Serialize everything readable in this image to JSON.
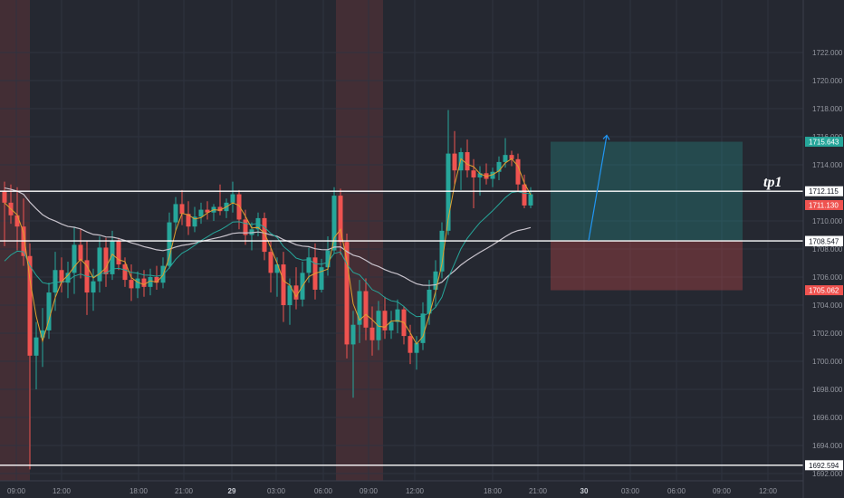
{
  "chart_data": {
    "type": "candlestick",
    "title": "",
    "xlabel": "",
    "ylabel": "",
    "ylim": [
      1692.0,
      1724.0
    ],
    "y_ticks": [
      "1722.000",
      "1720.000",
      "1718.000",
      "1716.000",
      "1714.000",
      "1712.000",
      "1710.000",
      "1708.000",
      "1706.000",
      "1704.000",
      "1702.000",
      "1700.000",
      "1698.000",
      "1696.000",
      "1694.000",
      "1692.000"
    ],
    "x_ticks": [
      {
        "label": "09:00",
        "bold": false
      },
      {
        "label": "12:00",
        "bold": false
      },
      {
        "label": "18:00",
        "bold": false
      },
      {
        "label": "21:00",
        "bold": false
      },
      {
        "label": "29",
        "bold": true
      },
      {
        "label": "03:00",
        "bold": false
      },
      {
        "label": "06:00",
        "bold": false
      },
      {
        "label": "09:00",
        "bold": false
      },
      {
        "label": "12:00",
        "bold": false
      },
      {
        "label": "18:00",
        "bold": false
      },
      {
        "label": "21:00",
        "bold": false
      },
      {
        "label": "30",
        "bold": true
      },
      {
        "label": "03:00",
        "bold": false
      },
      {
        "label": "06:00",
        "bold": false
      },
      {
        "label": "09:00",
        "bold": false
      },
      {
        "label": "12:00",
        "bold": false
      }
    ],
    "horizontal_lines": [
      1712.115,
      1708.578,
      1692.594
    ],
    "price_tags": [
      {
        "label": "1715.643",
        "value": 1715.643,
        "color": "#26a69a"
      },
      {
        "label": "1712.115",
        "value": 1712.115,
        "color": "#ffffff"
      },
      {
        "label": "1711.130",
        "value": 1711.13,
        "color": "#ef5350"
      },
      {
        "label": "1708.578",
        "value": 1708.578,
        "color": "#ffffff"
      },
      {
        "label": "1708.547",
        "value": 1708.547,
        "color": "#ffffff"
      },
      {
        "label": "1705.062",
        "value": 1705.062,
        "color": "#ef5350"
      },
      {
        "label": "1692.594",
        "value": 1692.594,
        "color": "#ffffff"
      }
    ],
    "position": {
      "entry": 1708.578,
      "target": 1715.643,
      "stop": 1705.062,
      "projection_start": 1708.6,
      "projection_end": 1716.1
    },
    "annotation": "tp1",
    "bull_color": "#26a69a",
    "bear_color": "#ef5350",
    "candles": [
      {
        "o": 1712.1,
        "h": 1712.8,
        "l": 1708.2,
        "c": 1711.3
      },
      {
        "o": 1711.3,
        "h": 1712.6,
        "l": 1709.8,
        "c": 1710.4
      },
      {
        "o": 1710.4,
        "h": 1712.4,
        "l": 1707.9,
        "c": 1709.6
      },
      {
        "o": 1709.6,
        "h": 1711.6,
        "l": 1706.8,
        "c": 1707.5
      },
      {
        "o": 1707.5,
        "h": 1708.4,
        "l": 1692.3,
        "c": 1700.4
      },
      {
        "o": 1700.4,
        "h": 1702.8,
        "l": 1698.0,
        "c": 1701.7
      },
      {
        "o": 1701.7,
        "h": 1703.8,
        "l": 1699.6,
        "c": 1702.2
      },
      {
        "o": 1702.2,
        "h": 1705.6,
        "l": 1701.6,
        "c": 1704.9
      },
      {
        "o": 1704.9,
        "h": 1707.8,
        "l": 1703.6,
        "c": 1706.5
      },
      {
        "o": 1706.5,
        "h": 1707.4,
        "l": 1704.9,
        "c": 1705.6
      },
      {
        "o": 1705.6,
        "h": 1707.1,
        "l": 1704.5,
        "c": 1706.3
      },
      {
        "o": 1706.3,
        "h": 1709.6,
        "l": 1704.8,
        "c": 1708.3
      },
      {
        "o": 1708.3,
        "h": 1709.4,
        "l": 1705.9,
        "c": 1707.2
      },
      {
        "o": 1707.2,
        "h": 1708.6,
        "l": 1703.3,
        "c": 1704.9
      },
      {
        "o": 1704.9,
        "h": 1706.6,
        "l": 1703.6,
        "c": 1705.7
      },
      {
        "o": 1705.7,
        "h": 1708.9,
        "l": 1704.9,
        "c": 1708.1
      },
      {
        "o": 1708.1,
        "h": 1708.8,
        "l": 1705.3,
        "c": 1706.2
      },
      {
        "o": 1706.2,
        "h": 1709.3,
        "l": 1705.8,
        "c": 1708.6
      },
      {
        "o": 1708.6,
        "h": 1708.8,
        "l": 1706.5,
        "c": 1706.9
      },
      {
        "o": 1706.9,
        "h": 1707.4,
        "l": 1705.3,
        "c": 1705.8
      },
      {
        "o": 1705.8,
        "h": 1706.9,
        "l": 1704.3,
        "c": 1705.2
      },
      {
        "o": 1705.2,
        "h": 1706.4,
        "l": 1704.5,
        "c": 1705.9
      },
      {
        "o": 1705.9,
        "h": 1706.5,
        "l": 1704.6,
        "c": 1705.3
      },
      {
        "o": 1705.3,
        "h": 1706.6,
        "l": 1704.7,
        "c": 1706.0
      },
      {
        "o": 1706.0,
        "h": 1706.8,
        "l": 1705.1,
        "c": 1705.6
      },
      {
        "o": 1705.6,
        "h": 1707.4,
        "l": 1705.2,
        "c": 1706.8
      },
      {
        "o": 1706.8,
        "h": 1710.6,
        "l": 1706.6,
        "c": 1709.9
      },
      {
        "o": 1709.9,
        "h": 1711.7,
        "l": 1709.3,
        "c": 1711.2
      },
      {
        "o": 1711.2,
        "h": 1712.2,
        "l": 1709.7,
        "c": 1710.5
      },
      {
        "o": 1710.5,
        "h": 1711.4,
        "l": 1709.0,
        "c": 1709.6
      },
      {
        "o": 1709.6,
        "h": 1711.0,
        "l": 1709.2,
        "c": 1710.3
      },
      {
        "o": 1710.3,
        "h": 1711.3,
        "l": 1709.8,
        "c": 1710.8
      },
      {
        "o": 1710.8,
        "h": 1711.4,
        "l": 1710.1,
        "c": 1710.6
      },
      {
        "o": 1710.6,
        "h": 1711.2,
        "l": 1710.0,
        "c": 1711.0
      },
      {
        "o": 1711.0,
        "h": 1712.6,
        "l": 1710.4,
        "c": 1710.7
      },
      {
        "o": 1710.7,
        "h": 1711.6,
        "l": 1710.2,
        "c": 1711.3
      },
      {
        "o": 1711.3,
        "h": 1712.8,
        "l": 1710.6,
        "c": 1711.9
      },
      {
        "o": 1711.9,
        "h": 1712.2,
        "l": 1709.4,
        "c": 1710.1
      },
      {
        "o": 1710.1,
        "h": 1710.8,
        "l": 1708.3,
        "c": 1709.0
      },
      {
        "o": 1709.0,
        "h": 1709.9,
        "l": 1707.9,
        "c": 1709.4
      },
      {
        "o": 1709.4,
        "h": 1710.6,
        "l": 1708.9,
        "c": 1710.2
      },
      {
        "o": 1710.2,
        "h": 1710.6,
        "l": 1707.2,
        "c": 1707.8
      },
      {
        "o": 1707.8,
        "h": 1708.6,
        "l": 1704.9,
        "c": 1706.3
      },
      {
        "o": 1706.3,
        "h": 1707.4,
        "l": 1704.6,
        "c": 1706.9
      },
      {
        "o": 1706.9,
        "h": 1707.8,
        "l": 1702.8,
        "c": 1704.0
      },
      {
        "o": 1704.0,
        "h": 1705.9,
        "l": 1702.6,
        "c": 1705.4
      },
      {
        "o": 1705.4,
        "h": 1706.7,
        "l": 1703.7,
        "c": 1704.4
      },
      {
        "o": 1704.4,
        "h": 1707.1,
        "l": 1703.9,
        "c": 1706.3
      },
      {
        "o": 1706.3,
        "h": 1708.1,
        "l": 1705.6,
        "c": 1707.4
      },
      {
        "o": 1707.4,
        "h": 1708.4,
        "l": 1704.4,
        "c": 1705.1
      },
      {
        "o": 1705.1,
        "h": 1707.3,
        "l": 1704.9,
        "c": 1706.7
      },
      {
        "o": 1706.7,
        "h": 1708.9,
        "l": 1706.1,
        "c": 1707.9
      },
      {
        "o": 1707.9,
        "h": 1712.4,
        "l": 1707.7,
        "c": 1711.8
      },
      {
        "o": 1711.8,
        "h": 1712.3,
        "l": 1707.6,
        "c": 1708.5
      },
      {
        "o": 1708.5,
        "h": 1709.1,
        "l": 1700.2,
        "c": 1701.2
      },
      {
        "o": 1701.2,
        "h": 1703.6,
        "l": 1697.4,
        "c": 1702.6
      },
      {
        "o": 1702.6,
        "h": 1705.8,
        "l": 1701.3,
        "c": 1705.0
      },
      {
        "o": 1705.0,
        "h": 1705.9,
        "l": 1701.5,
        "c": 1702.4
      },
      {
        "o": 1702.4,
        "h": 1703.9,
        "l": 1700.4,
        "c": 1701.5
      },
      {
        "o": 1701.5,
        "h": 1704.3,
        "l": 1700.8,
        "c": 1703.6
      },
      {
        "o": 1703.6,
        "h": 1704.6,
        "l": 1701.6,
        "c": 1702.2
      },
      {
        "o": 1702.2,
        "h": 1703.6,
        "l": 1701.6,
        "c": 1702.8
      },
      {
        "o": 1702.8,
        "h": 1704.4,
        "l": 1702.0,
        "c": 1703.7
      },
      {
        "o": 1703.7,
        "h": 1703.9,
        "l": 1701.2,
        "c": 1701.8
      },
      {
        "o": 1701.8,
        "h": 1702.6,
        "l": 1699.8,
        "c": 1700.6
      },
      {
        "o": 1700.6,
        "h": 1701.8,
        "l": 1699.4,
        "c": 1701.3
      },
      {
        "o": 1701.3,
        "h": 1704.2,
        "l": 1700.8,
        "c": 1703.4
      },
      {
        "o": 1703.4,
        "h": 1705.8,
        "l": 1702.6,
        "c": 1705.1
      },
      {
        "o": 1705.1,
        "h": 1707.2,
        "l": 1703.9,
        "c": 1706.4
      },
      {
        "o": 1706.4,
        "h": 1709.9,
        "l": 1705.9,
        "c": 1709.3
      },
      {
        "o": 1709.3,
        "h": 1717.9,
        "l": 1709.0,
        "c": 1714.8
      },
      {
        "o": 1714.8,
        "h": 1716.4,
        "l": 1712.6,
        "c": 1713.6
      },
      {
        "o": 1713.6,
        "h": 1715.2,
        "l": 1712.2,
        "c": 1714.9
      },
      {
        "o": 1714.9,
        "h": 1715.8,
        "l": 1713.1,
        "c": 1713.6
      },
      {
        "o": 1713.6,
        "h": 1714.4,
        "l": 1710.9,
        "c": 1713.1
      },
      {
        "o": 1713.1,
        "h": 1713.9,
        "l": 1711.8,
        "c": 1713.4
      },
      {
        "o": 1713.4,
        "h": 1714.1,
        "l": 1712.6,
        "c": 1713.0
      },
      {
        "o": 1713.0,
        "h": 1713.8,
        "l": 1712.4,
        "c": 1713.5
      },
      {
        "o": 1713.5,
        "h": 1714.6,
        "l": 1712.9,
        "c": 1714.2
      },
      {
        "o": 1714.2,
        "h": 1715.9,
        "l": 1713.8,
        "c": 1714.7
      },
      {
        "o": 1714.7,
        "h": 1715.0,
        "l": 1713.9,
        "c": 1714.4
      },
      {
        "o": 1714.4,
        "h": 1714.8,
        "l": 1712.1,
        "c": 1712.6
      },
      {
        "o": 1712.6,
        "h": 1713.3,
        "l": 1710.9,
        "c": 1711.1
      },
      {
        "o": 1711.1,
        "h": 1712.4,
        "l": 1710.9,
        "c": 1711.9
      }
    ]
  }
}
